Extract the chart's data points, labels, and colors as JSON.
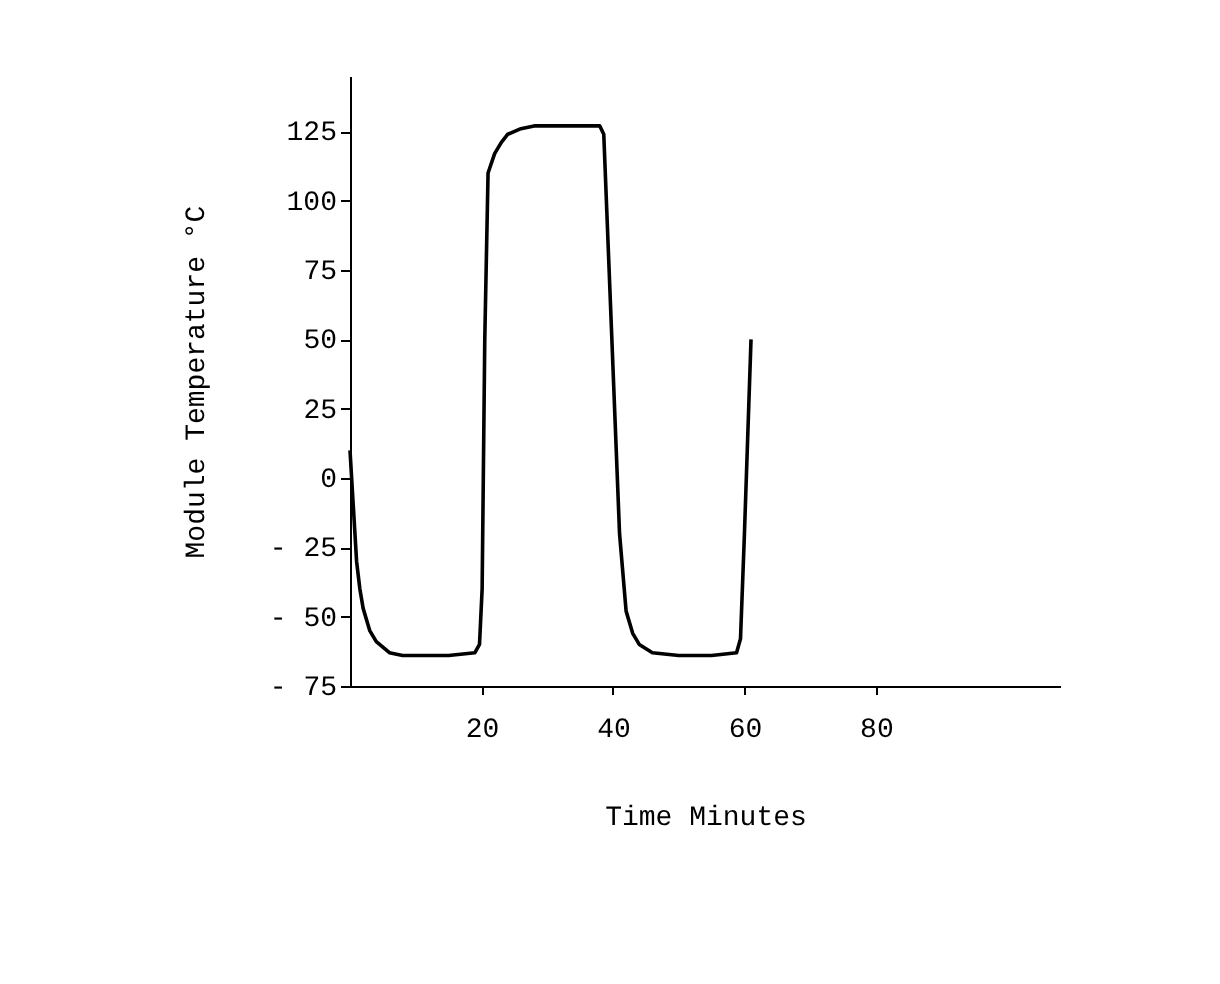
{
  "chart_data": {
    "type": "line",
    "xlabel": "Time Minutes",
    "ylabel": "Module Temperature °C",
    "xlim": [
      0,
      108
    ],
    "ylim": [
      -75,
      145
    ],
    "xticks": [
      20,
      40,
      60,
      80
    ],
    "yticks": [
      {
        "value": -75,
        "label": "- 75"
      },
      {
        "value": -50,
        "label": "- 50"
      },
      {
        "value": -25,
        "label": "- 25"
      },
      0,
      25,
      50,
      75,
      100,
      125
    ],
    "grid": false,
    "marker": "none",
    "line_style": "solid",
    "series": [
      {
        "color": "#000000",
        "x": [
          0,
          0.5,
          1,
          1.5,
          2,
          3,
          4,
          5,
          6,
          8,
          10,
          15,
          19,
          19.7,
          20.1,
          20.5,
          21,
          22,
          23,
          24,
          26,
          28,
          32,
          36,
          38,
          38.6,
          39,
          40,
          41,
          42,
          43,
          44,
          46,
          50,
          55,
          58.8,
          59.4,
          60,
          60.5,
          61
        ],
        "values": [
          10,
          -10,
          -30,
          -40,
          -47,
          -55,
          -59,
          -61,
          -63,
          -64,
          -64,
          -64,
          -63,
          -60,
          -40,
          50,
          110,
          117,
          121,
          124,
          126,
          127,
          127,
          127,
          127,
          124,
          100,
          40,
          -20,
          -48,
          -56,
          -60,
          -63,
          -64,
          -64,
          -63,
          -58,
          -20,
          15,
          50
        ]
      }
    ]
  }
}
